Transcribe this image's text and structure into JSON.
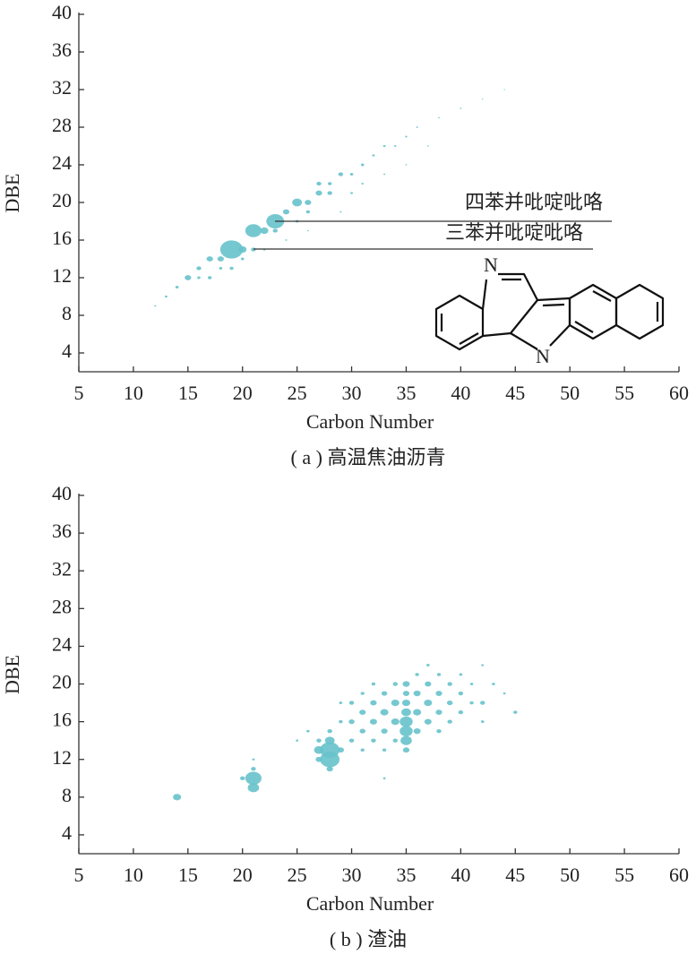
{
  "chart_data": [
    {
      "type": "scatter",
      "caption": "( a ) 高温焦油沥青",
      "x_label": "Carbon Number",
      "y_label": "DBE",
      "xlim": [
        5,
        60
      ],
      "ylim": [
        2,
        40
      ],
      "xticks": [
        5,
        10,
        15,
        20,
        25,
        30,
        35,
        40,
        45,
        50,
        55,
        60
      ],
      "yticks": [
        4,
        8,
        12,
        16,
        20,
        24,
        28,
        32,
        36,
        40
      ],
      "color": "#67c2cb",
      "x": [
        19,
        21,
        23,
        25,
        20,
        22,
        24,
        17,
        15,
        16,
        18,
        17,
        19,
        21,
        26,
        27,
        28,
        29,
        27,
        23,
        26,
        28,
        25,
        30,
        31,
        32,
        33,
        34,
        35,
        36,
        38,
        40,
        42,
        44,
        14,
        13,
        12,
        16,
        18,
        20,
        22,
        24,
        26,
        30,
        31,
        33,
        35,
        37,
        29
      ],
      "y": [
        15,
        17,
        18,
        20,
        15,
        17,
        19,
        14,
        12,
        13,
        14,
        12,
        13,
        15,
        20,
        21,
        21,
        23,
        22,
        17,
        19,
        22,
        18,
        23,
        24,
        25,
        26,
        26,
        27,
        28,
        29,
        30,
        31,
        32,
        11,
        10,
        9,
        12,
        13,
        14,
        15,
        16,
        17,
        21,
        22,
        23,
        24,
        26,
        19
      ],
      "sizes": [
        7,
        5,
        5.5,
        3,
        2.5,
        2.5,
        2,
        2,
        2,
        1.5,
        2,
        1.2,
        1.2,
        1.5,
        2,
        2,
        1.5,
        1.5,
        1.5,
        1.5,
        1.2,
        1.2,
        1,
        1,
        1,
        0.8,
        0.8,
        0.7,
        0.7,
        0.6,
        0.5,
        0.5,
        0.4,
        0.4,
        1,
        0.8,
        0.6,
        1,
        1,
        1,
        0.8,
        0.6,
        0.5,
        0.8,
        0.7,
        0.6,
        0.5,
        0.5,
        0.6
      ],
      "annotations": [
        "四苯并吡啶吡咯",
        "三苯并吡啶吡咯"
      ],
      "structure_atoms": [
        "N",
        "N"
      ]
    },
    {
      "type": "scatter",
      "caption": "( b ) 渣油",
      "x_label": "Carbon Number",
      "y_label": "DBE",
      "xlim": [
        5,
        60
      ],
      "ylim": [
        2,
        40
      ],
      "xticks": [
        5,
        10,
        15,
        20,
        25,
        30,
        35,
        40,
        45,
        50,
        55,
        60
      ],
      "yticks": [
        4,
        8,
        12,
        16,
        20,
        24,
        28,
        32,
        36,
        40
      ],
      "color": "#67c2cb",
      "x": [
        14,
        20,
        21,
        21,
        21,
        21,
        27,
        27,
        27,
        28,
        28,
        28,
        28,
        28,
        29,
        29,
        29,
        30,
        30,
        30,
        31,
        31,
        31,
        31,
        32,
        32,
        32,
        32,
        33,
        33,
        33,
        33,
        34,
        34,
        34,
        34,
        35,
        35,
        35,
        35,
        35,
        35,
        35,
        35,
        36,
        36,
        36,
        36,
        37,
        37,
        37,
        37,
        38,
        38,
        38,
        38,
        39,
        39,
        39,
        40,
        40,
        40,
        41,
        41,
        42,
        42,
        42,
        43,
        44,
        45,
        26,
        25,
        33
      ],
      "y": [
        8,
        10,
        9,
        10,
        11,
        12,
        12,
        13,
        14,
        11,
        12,
        13,
        14,
        15,
        13,
        16,
        18,
        14,
        16,
        18,
        13,
        15,
        17,
        19,
        14,
        16,
        18,
        20,
        13,
        15,
        17,
        19,
        14,
        16,
        18,
        20,
        13,
        14,
        15,
        16,
        17,
        18,
        19,
        20,
        15,
        17,
        19,
        21,
        16,
        18,
        20,
        22,
        15,
        17,
        19,
        21,
        16,
        18,
        20,
        17,
        19,
        21,
        18,
        20,
        16,
        18,
        22,
        20,
        19,
        17,
        15,
        14,
        10
      ],
      "sizes": [
        2.5,
        1.5,
        3.5,
        5,
        1.5,
        0.8,
        2,
        3,
        1.5,
        2,
        6,
        6,
        3,
        1.5,
        2,
        1.2,
        1,
        1.5,
        1.8,
        1.5,
        1.2,
        1.8,
        2,
        1.2,
        1.5,
        2.2,
        2,
        1.2,
        1.2,
        2,
        2.5,
        1.8,
        1.5,
        2.5,
        2.5,
        1.5,
        2,
        3.5,
        4,
        4,
        3,
        2.5,
        2,
        2.2,
        2.2,
        2.5,
        2.2,
        1.2,
        2.2,
        2.5,
        2,
        1,
        1.5,
        2,
        2,
        1.2,
        1.5,
        1.8,
        1.5,
        1.5,
        1.5,
        1,
        1.2,
        1,
        1,
        1.5,
        0.8,
        1,
        0.8,
        1.2,
        1,
        0.8,
        0.8
      ]
    }
  ]
}
